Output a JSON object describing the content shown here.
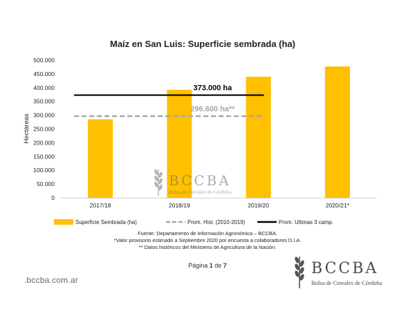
{
  "chart_data": {
    "type": "bar",
    "title": "Maíz en San Luis: Superficie sembrada (ha)",
    "ylabel": "Hectáreas",
    "xlabel": "",
    "categories": [
      "2017/18",
      "2018/19",
      "2019/20",
      "2020/21*"
    ],
    "ylim": [
      0,
      500000
    ],
    "yticks": [
      0,
      50000,
      100000,
      150000,
      200000,
      250000,
      300000,
      350000,
      400000,
      450000,
      500000
    ],
    "ytick_labels": [
      "0",
      "50.000",
      "100.000",
      "150.000",
      "200.000",
      "250.000",
      "300.000",
      "350.000",
      "400.000",
      "450.000",
      "500.000"
    ],
    "grid": false,
    "legend_position": "bottom",
    "series": [
      {
        "name": "Superficie Sembrada (ha)",
        "type": "bar",
        "color": "#FFC000",
        "values": [
          285000,
          392000,
          440000,
          477000
        ]
      }
    ],
    "reference_lines": [
      {
        "name": "Prom. Hist. (2010-2019)",
        "value": 296600,
        "label": "296.600 ha**",
        "color": "#A6A6A6",
        "style": "dashed",
        "span": [
          "2017/18",
          "2019/20"
        ]
      },
      {
        "name": "Prom. Ultimas 3 camp.",
        "value": 373000,
        "label": "373.000 ha",
        "color": "#000000",
        "style": "solid",
        "span": [
          "2017/18",
          "2019/20"
        ]
      }
    ]
  },
  "notes": [
    "Fuente: Departamento de Información Agronómica – BCCBA.",
    "*Valor provisorio estimado a Septiembre 2020 por encuesta a colaboradores D.I.A.",
    "** Datos históricos del Ministerio de Agricultura de la Nación."
  ],
  "page": {
    "prefix": "Página ",
    "current": "1",
    "middle": " de ",
    "total": "7"
  },
  "footer": {
    "site_url": ".bccba.com.ar"
  },
  "logo": {
    "main": "BCCBA",
    "sub": "Bolsa de Cereales de Córdoba",
    "icon": "wheat-icon"
  },
  "watermark": {
    "main": "BCCBA",
    "sub": "Bolsa de Cereales de Córdoba",
    "icon": "wheat-icon"
  }
}
